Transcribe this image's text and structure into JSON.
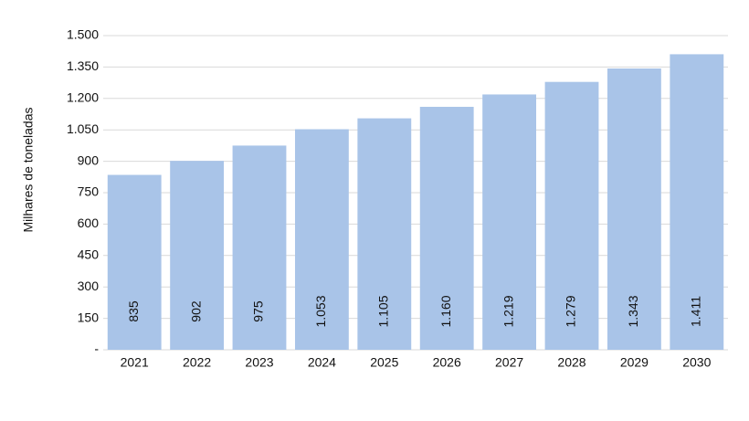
{
  "chart_data": {
    "type": "bar",
    "y_label": "Milhares de toneladas",
    "categories": [
      "2021",
      "2022",
      "2023",
      "2024",
      "2025",
      "2026",
      "2027",
      "2028",
      "2029",
      "2030"
    ],
    "values": [
      835,
      902,
      975,
      1053,
      1105,
      1160,
      1219,
      1279,
      1343,
      1411
    ],
    "value_labels": [
      "835",
      "902",
      "975",
      "1.053",
      "1.105",
      "1.160",
      "1.219",
      "1.279",
      "1.343",
      "1.411"
    ],
    "color": "#a9c4e8",
    "ylim": [
      0,
      1500
    ],
    "yticks": [
      {
        "value": 0,
        "label": "-"
      },
      150,
      300,
      450,
      600,
      750,
      900,
      {
        "value": 1050,
        "label": "1.050"
      },
      {
        "value": 1200,
        "label": "1.200"
      },
      {
        "value": 1350,
        "label": "1.350"
      },
      {
        "value": 1500,
        "label": "1.500"
      }
    ],
    "grid": true
  }
}
